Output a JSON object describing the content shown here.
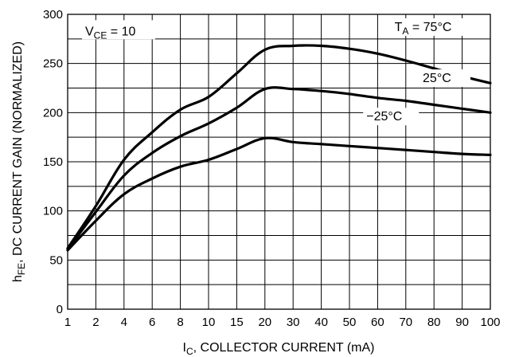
{
  "chart_data": {
    "type": "line",
    "xlabel": {
      "main": "I",
      "sub": "C",
      "rest": ", COLLECTOR CURRENT (mA)"
    },
    "ylabel": {
      "main": "h",
      "sub": "FE",
      "rest": ", DC CURRENT GAIN (NORMALIZED)"
    },
    "x_tick_labels": [
      "1",
      "2",
      "4",
      "6",
      "8",
      "10",
      "15",
      "20",
      "30",
      "40",
      "50",
      "60",
      "70",
      "80",
      "90",
      "100"
    ],
    "y_ticks": [
      0,
      50,
      100,
      150,
      200,
      250,
      300
    ],
    "y_tick_labels": [
      "0",
      "50",
      "100",
      "150",
      "200",
      "250",
      "300"
    ],
    "ylim": [
      0,
      300
    ],
    "y_minor_grid_step": 25,
    "grid": true,
    "condition": {
      "main": "V",
      "sub": "CE",
      "rest": " = 10"
    },
    "series": [
      {
        "name": "T_A = 75°C",
        "label": {
          "main": "T",
          "sub": "A",
          "rest": " = 75°C"
        },
        "x": [
          "1",
          "2",
          "4",
          "6",
          "8",
          "10",
          "15",
          "20",
          "30",
          "40",
          "50",
          "60",
          "70",
          "80",
          "90",
          "100"
        ],
        "values": [
          62,
          105,
          152,
          180,
          203,
          216,
          240,
          264,
          268,
          268,
          265,
          260,
          253,
          245,
          237,
          230
        ]
      },
      {
        "name": "25°C",
        "label": {
          "main": "25°C",
          "sub": "",
          "rest": ""
        },
        "x": [
          "1",
          "2",
          "4",
          "6",
          "8",
          "10",
          "15",
          "20",
          "30",
          "40",
          "50",
          "60",
          "70",
          "80",
          "90",
          "100"
        ],
        "values": [
          61,
          99,
          136,
          159,
          176,
          189,
          205,
          224,
          224,
          222,
          219,
          215,
          212,
          208,
          204,
          200
        ]
      },
      {
        "name": "−25°C",
        "label": {
          "main": "−25°C",
          "sub": "",
          "rest": ""
        },
        "x": [
          "1",
          "2",
          "4",
          "6",
          "8",
          "10",
          "15",
          "20",
          "30",
          "40",
          "50",
          "60",
          "70",
          "80",
          "90",
          "100"
        ],
        "values": [
          60,
          90,
          117,
          133,
          145,
          152,
          163,
          174,
          170,
          168,
          166,
          164,
          162,
          160,
          158,
          157
        ]
      }
    ]
  }
}
